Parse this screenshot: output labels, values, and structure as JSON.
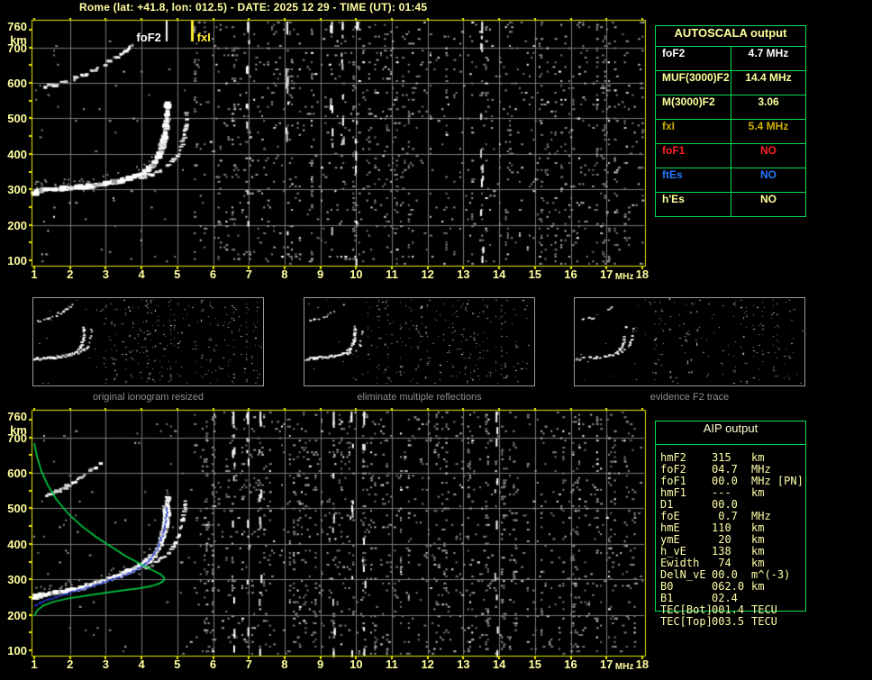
{
  "title": {
    "text": "Rome (lat: +41.8, lon: 012.5) - DATE: 2025 12 29 - TIME (UT): 01:45"
  },
  "autoscala": {
    "header": "AUTOSCALA output",
    "rows": [
      {
        "label": "foF2",
        "value": "4.7 MHz",
        "color": "#ffffff"
      },
      {
        "label": "MUF(3000)F2",
        "value": "14.4 MHz",
        "color": "#ffff9c"
      },
      {
        "label": "M(3000)F2",
        "value": "3.06",
        "color": "#ffff9c"
      },
      {
        "label": "fxI",
        "value": "5.4 MHz",
        "color": "#cdb100"
      },
      {
        "label": "foF1",
        "value": "NO",
        "color": "#ff2222"
      },
      {
        "label": "ftEs",
        "value": "NO",
        "color": "#2277ff"
      },
      {
        "label": "h'Es",
        "value": "NO",
        "color": "#ffff9c"
      }
    ]
  },
  "aip": {
    "header": "AIP output",
    "rows": [
      {
        "label": "hmF2",
        "value": "315",
        "unit": "km"
      },
      {
        "label": "foF2",
        "value": "04.7",
        "unit": "MHz"
      },
      {
        "label": "foF1",
        "value": "00.0",
        "unit": "MHz [PN]"
      },
      {
        "label": "hmF1",
        "value": "---",
        "unit": "km"
      },
      {
        "label": "D1",
        "value": "00.0",
        "unit": ""
      },
      {
        "label": "foE",
        "value": " 0.7",
        "unit": "MHz"
      },
      {
        "label": "hmE",
        "value": "110",
        "unit": "km"
      },
      {
        "label": "ymE",
        "value": " 20",
        "unit": "km"
      },
      {
        "label": "h_vE",
        "value": "138",
        "unit": "km"
      },
      {
        "label": "Ewidth",
        "value": " 74",
        "unit": "km"
      },
      {
        "label": "DelN_vE",
        "value": "00.0",
        "unit": "m^(-3)"
      },
      {
        "label": "B0",
        "value": "062.0",
        "unit": "km"
      },
      {
        "label": "B1",
        "value": "02.4",
        "unit": ""
      },
      {
        "label": "TEC[Bot]",
        "value": "001.4",
        "unit": "TECU"
      },
      {
        "label": "TEC[Top]",
        "value": "003.5",
        "unit": "TECU"
      }
    ]
  },
  "chart_data": [
    {
      "id": "main_ionogram",
      "type": "scatter",
      "xlabel": "MHz",
      "ylabel": "km",
      "xlim": [
        1,
        18
      ],
      "ylim": [
        100,
        760
      ],
      "x_ticks": [
        1,
        2,
        3,
        4,
        5,
        6,
        7,
        8,
        9,
        10,
        11,
        12,
        13,
        14,
        15,
        16,
        17,
        18
      ],
      "y_ticks": [
        760,
        700,
        600,
        500,
        400,
        300,
        200,
        100
      ],
      "x_unit": "MHz",
      "y_unit": "km",
      "grid": true,
      "markers": [
        {
          "name": "foF2",
          "freq_mhz": 4.7,
          "label": "foF2",
          "color": "#ffffff",
          "side": "left"
        },
        {
          "name": "fxI",
          "freq_mhz": 5.4,
          "label": "fxI",
          "color": "#ffee33",
          "side": "right"
        }
      ],
      "series": [
        {
          "name": "F2-trace-ordinary",
          "style": "blob",
          "size": 6,
          "dash": 0,
          "color": "#ffffff",
          "points": [
            [
              1.0,
              288
            ],
            [
              1.1,
              295
            ],
            [
              1.3,
              298
            ],
            [
              1.6,
              300
            ],
            [
              2.0,
              303
            ],
            [
              2.4,
              307
            ],
            [
              2.8,
              312
            ],
            [
              3.2,
              319
            ],
            [
              3.5,
              326
            ],
            [
              3.8,
              335
            ],
            [
              4.05,
              346
            ],
            [
              4.25,
              360
            ],
            [
              4.4,
              378
            ],
            [
              4.52,
              400
            ],
            [
              4.62,
              430
            ],
            [
              4.68,
              465
            ],
            [
              4.72,
              505
            ],
            [
              4.74,
              548
            ]
          ]
        },
        {
          "name": "F2-trace-extraordinary",
          "style": "blob",
          "size": 4,
          "dash": 0.35,
          "color": "#e8e8e8",
          "points": [
            [
              3.95,
              330
            ],
            [
              4.25,
              341
            ],
            [
              4.55,
              354
            ],
            [
              4.8,
              370
            ],
            [
              5.0,
              392
            ],
            [
              5.12,
              420
            ],
            [
              5.2,
              452
            ],
            [
              5.26,
              490
            ],
            [
              5.29,
              530
            ]
          ]
        },
        {
          "name": "second-hop-reflection",
          "style": "blob",
          "size": 4,
          "dash": 0.45,
          "color": "#cccccc",
          "points": [
            [
              1.3,
              588
            ],
            [
              1.7,
              598
            ],
            [
              2.1,
              611
            ],
            [
              2.5,
              627
            ],
            [
              2.9,
              647
            ],
            [
              3.25,
              668
            ],
            [
              3.6,
              692
            ],
            [
              3.9,
              715
            ]
          ]
        }
      ],
      "rfi_columns": [
        6.95,
        8.05,
        9.3,
        9.6,
        10.0,
        13.5
      ],
      "noise": {
        "seed": 11,
        "left_density": 0.008,
        "right_density": 1.0
      }
    },
    {
      "id": "thumb_original",
      "type": "scatter",
      "caption": "original ionogram resized",
      "series_ref": "main_ionogram",
      "xlim": [
        1,
        18
      ],
      "ylim": [
        100,
        760
      ],
      "noise": {
        "seed": 31
      }
    },
    {
      "id": "thumb_eliminate",
      "type": "scatter",
      "caption": "eliminate multiple reflections",
      "series_ref": "main_ionogram",
      "xlim": [
        1,
        18
      ],
      "ylim": [
        100,
        760
      ],
      "noise": {
        "seed": 41
      }
    },
    {
      "id": "thumb_evidence",
      "type": "scatter",
      "caption": "evidence F2 trace",
      "series_ref": "main_ionogram",
      "xlim": [
        1,
        18
      ],
      "ylim": [
        100,
        760
      ],
      "noise": {
        "seed": 51
      }
    },
    {
      "id": "profile_ionogram",
      "type": "scatter",
      "xlabel": "MHz",
      "ylabel": "km",
      "xlim": [
        1,
        18
      ],
      "ylim": [
        100,
        760
      ],
      "x_ticks": [
        1,
        2,
        3,
        4,
        5,
        6,
        7,
        8,
        9,
        10,
        11,
        12,
        13,
        14,
        15,
        16,
        17,
        18
      ],
      "y_ticks": [
        760,
        700,
        600,
        500,
        400,
        300,
        200,
        100
      ],
      "x_unit": "MHz",
      "y_unit": "km",
      "grid": true,
      "markers": [],
      "series": [
        {
          "name": "F2-trace-ordinary",
          "style": "blob",
          "size": 6,
          "dash": 0,
          "color": "#ffffff",
          "points": [
            [
              1.0,
              250
            ],
            [
              1.3,
              256
            ],
            [
              1.7,
              263
            ],
            [
              2.1,
              272
            ],
            [
              2.5,
              282
            ],
            [
              2.9,
              294
            ],
            [
              3.3,
              307
            ],
            [
              3.6,
              319
            ],
            [
              3.9,
              333
            ],
            [
              4.15,
              349
            ],
            [
              4.35,
              368
            ],
            [
              4.5,
              392
            ],
            [
              4.6,
              422
            ],
            [
              4.68,
              462
            ],
            [
              4.72,
              502
            ],
            [
              4.74,
              538
            ]
          ]
        },
        {
          "name": "F2-trace-extraordinary",
          "style": "blob",
          "size": 4,
          "dash": 0.35,
          "color": "#e8e8e8",
          "points": [
            [
              4.1,
              330
            ],
            [
              4.4,
              346
            ],
            [
              4.65,
              363
            ],
            [
              4.85,
              385
            ],
            [
              5.0,
              412
            ],
            [
              5.12,
              448
            ],
            [
              5.2,
              488
            ],
            [
              5.24,
              522
            ]
          ]
        },
        {
          "name": "second-hop-reflection",
          "style": "blob",
          "size": 4,
          "dash": 0.45,
          "color": "#cccccc",
          "points": [
            [
              1.35,
              532
            ],
            [
              1.75,
              552
            ],
            [
              2.15,
              576
            ],
            [
              2.55,
              604
            ],
            [
              2.95,
              634
            ]
          ]
        },
        {
          "name": "restored-O-trace",
          "style": "dots",
          "color": "#2639cc",
          "points": [
            [
              1.0,
              228
            ],
            [
              1.25,
              240
            ],
            [
              1.55,
              251
            ],
            [
              1.9,
              262
            ],
            [
              2.3,
              274
            ],
            [
              2.7,
              287
            ],
            [
              3.1,
              300
            ],
            [
              3.5,
              314
            ],
            [
              3.8,
              328
            ],
            [
              4.05,
              343
            ],
            [
              4.25,
              362
            ],
            [
              4.42,
              388
            ],
            [
              4.54,
              420
            ],
            [
              4.63,
              455
            ],
            [
              4.69,
              492
            ],
            [
              4.71,
              508
            ]
          ]
        },
        {
          "name": "electron-density-profile",
          "style": "line",
          "color": "#00c840",
          "points": [
            [
              1.0,
              683
            ],
            [
              1.08,
              645
            ],
            [
              1.2,
              605
            ],
            [
              1.38,
              565
            ],
            [
              1.62,
              525
            ],
            [
              1.95,
              485
            ],
            [
              2.35,
              448
            ],
            [
              2.75,
              418
            ],
            [
              3.15,
              392
            ],
            [
              3.55,
              366
            ],
            [
              3.95,
              344
            ],
            [
              4.3,
              326
            ],
            [
              4.55,
              313
            ],
            [
              4.64,
              304
            ],
            [
              4.62,
              296
            ],
            [
              4.5,
              288
            ],
            [
              4.28,
              281
            ],
            [
              3.95,
              275
            ],
            [
              3.5,
              269
            ],
            [
              3.0,
              262
            ],
            [
              2.45,
              254
            ],
            [
              1.95,
              246
            ],
            [
              1.55,
              237
            ],
            [
              1.25,
              226
            ],
            [
              1.08,
              212
            ],
            [
              1.0,
              196
            ]
          ]
        }
      ],
      "rfi_columns": [
        6.55,
        6.95,
        7.3,
        9.35,
        9.85,
        10.2,
        13.9
      ],
      "noise": {
        "seed": 23,
        "left_density": 0.008,
        "right_density": 1.0
      }
    }
  ]
}
